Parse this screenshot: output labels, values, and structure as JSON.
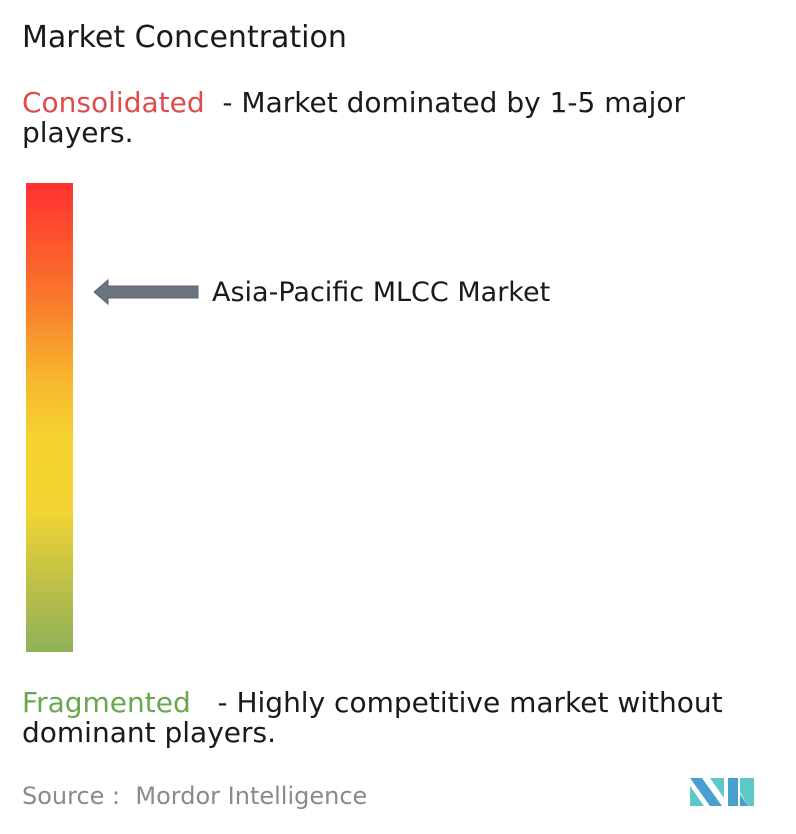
{
  "title": "Market Concentration",
  "consolidated": {
    "label": "Consolidated",
    "description": "  - Market dominated by 1-5 major players.",
    "color": "#e04b4b"
  },
  "fragmented": {
    "label": "Fragmented",
    "description": "   - Highly competitive market without dominant players.",
    "color": "#6aa84f"
  },
  "market": {
    "label": "Asia-Pacific MLCC Market",
    "arrow_icon": "arrow-left-icon",
    "arrow_color": "#6b7280"
  },
  "source": {
    "text": "Source :  Mordor Intelligence"
  },
  "logo": {
    "name": "Mordor Intelligence logo",
    "colors": [
      "#4a9fd1",
      "#5cc8c8"
    ]
  }
}
